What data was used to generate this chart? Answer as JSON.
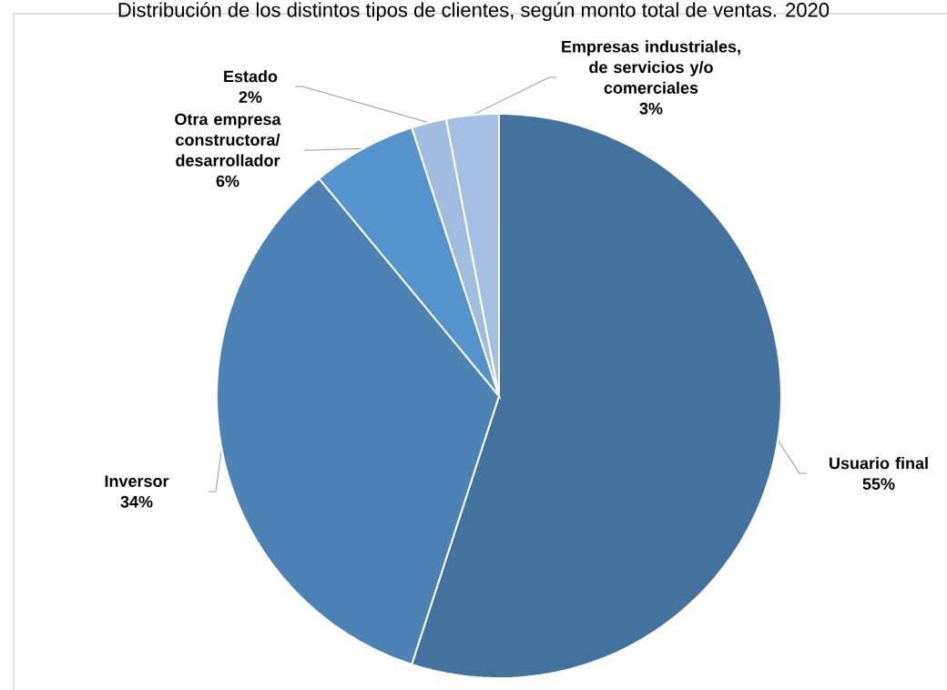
{
  "chart_data": {
    "type": "pie",
    "title": "Distribución de los distintos tipos de clientes, según monto total de ventas. 2020",
    "categories": [
      "Usuario final",
      "Inversor",
      "Otra empresa constructora/ desarrollador",
      "Estado",
      "Empresas industriales, de servicios y/o comerciales"
    ],
    "values": [
      55,
      34,
      6,
      2,
      3
    ],
    "value_labels": [
      "55%",
      "34%",
      "6%",
      "2%",
      "3%"
    ],
    "colors": [
      "#44729e",
      "#4c82b4",
      "#5593cc",
      "#a0bde0",
      "#a3c0e3"
    ]
  }
}
